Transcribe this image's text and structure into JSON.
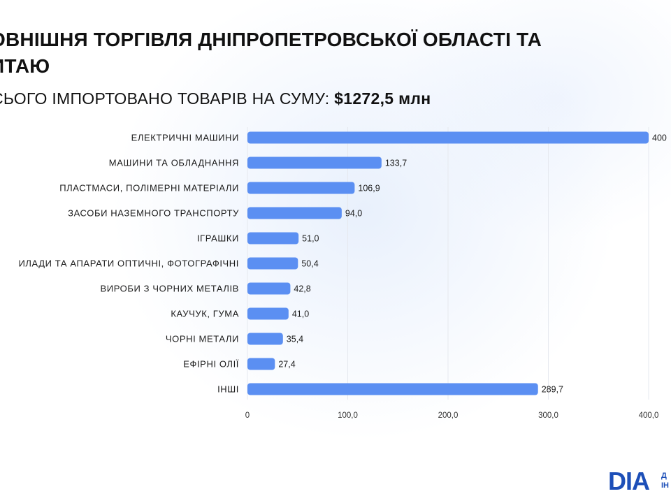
{
  "header": {
    "title": "ОВНІШНЯ ТОРГІВЛЯ ДНІПРОПЕТРОВСЬКОЇ ОБЛАСТІ ТА\nИТАЮ",
    "subtitle_prefix": "СЬОГО ІМПОРТОВАНО ТОВАРІВ НА СУМУ: ",
    "subtitle_value": "$1272,5 млн"
  },
  "logo": {
    "mark": "DIA",
    "text": "Д\nІН"
  },
  "colors": {
    "bar": "#5b8ff2",
    "grid": "#e6e9ef",
    "brand": "#1d4fb8"
  },
  "chart_data": {
    "type": "bar",
    "orientation": "horizontal",
    "categories": [
      "ЕЛЕКТРИЧНІ МАШИНИ",
      "МАШИНИ ТА ОБЛАДНАННЯ",
      "ПЛАСТМАСИ, ПОЛІМЕРНІ МАТЕРІАЛИ",
      "ЗАСОБИ НАЗЕМНОГО ТРАНСПОРТУ",
      "ІГРАШКИ",
      "ИЛАДИ ТА АПАРАТИ ОПТИЧНІ, ФОТОГРАФІЧНІ",
      "ВИРОБИ З ЧОРНИХ МЕТАЛІВ",
      "КАУЧУК, ГУМА",
      "ЧОРНІ МЕТАЛИ",
      "ЕФІРНІ ОЛІЇ",
      "ІНШІ"
    ],
    "values": [
      400.0,
      133.7,
      106.9,
      94.0,
      51.0,
      50.4,
      42.8,
      41.0,
      35.4,
      27.4,
      289.7
    ],
    "value_labels": [
      "400",
      "133,7",
      "106,9",
      "94,0",
      "51,0",
      "50,4",
      "42,8",
      "41,0",
      "35,4",
      "27,4",
      "289,7"
    ],
    "xlim": [
      0,
      400
    ],
    "xticks": [
      0,
      100,
      200,
      300,
      400
    ],
    "xtick_labels": [
      "0",
      "100,0",
      "200,0",
      "300,0",
      "400,0"
    ],
    "grid": true,
    "legend": "none"
  }
}
